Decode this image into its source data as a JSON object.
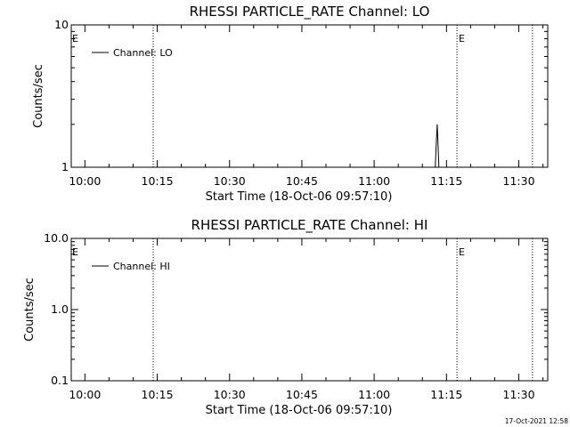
{
  "footer": {
    "timestamp": "17-Oct-2021 12:58"
  },
  "chart_data": [
    {
      "type": "line",
      "title": "RHESSI PARTICLE_RATE Channel: LO",
      "xlabel": "Start Time (18-Oct-06 09:57:10)",
      "ylabel": "Counts/sec",
      "yscale": "log",
      "xlim": [
        "09:57:10",
        "11:36:00"
      ],
      "ylim": [
        1,
        10
      ],
      "x_ticks": [
        "10:00",
        "10:15",
        "10:30",
        "10:45",
        "11:00",
        "11:15",
        "11:30"
      ],
      "y_ticks": [
        {
          "value": 1,
          "label": "1"
        },
        {
          "value": 10,
          "label": "10"
        }
      ],
      "series": [
        {
          "name": "Channel: LO",
          "x": [
            "11:12:40",
            "11:12:55",
            "11:13:05",
            "11:13:15",
            "11:13:25"
          ],
          "y": [
            1,
            1.55,
            2.0,
            1.4,
            1
          ]
        }
      ],
      "legend": "top-left",
      "markers": [
        {
          "x": "10:14:10",
          "label": ""
        },
        {
          "x": "11:17:10",
          "label": "E"
        },
        {
          "x": "11:32:50",
          "label": ""
        }
      ],
      "flag_left": "E",
      "grid": false
    },
    {
      "type": "line",
      "title": "RHESSI PARTICLE_RATE Channel: HI",
      "xlabel": "Start Time (18-Oct-06 09:57:10)",
      "ylabel": "Counts/sec",
      "yscale": "log",
      "xlim": [
        "09:57:10",
        "11:36:00"
      ],
      "ylim": [
        0.1,
        10
      ],
      "x_ticks": [
        "10:00",
        "10:15",
        "10:30",
        "10:45",
        "11:00",
        "11:15",
        "11:30"
      ],
      "y_ticks": [
        {
          "value": 0.1,
          "label": "0.1"
        },
        {
          "value": 1,
          "label": "1.0"
        },
        {
          "value": 10,
          "label": "10.0"
        }
      ],
      "series": [
        {
          "name": "Channel: HI",
          "x": [],
          "y": []
        }
      ],
      "legend": "top-left",
      "markers": [
        {
          "x": "10:14:10",
          "label": ""
        },
        {
          "x": "11:17:10",
          "label": "E"
        },
        {
          "x": "11:32:50",
          "label": ""
        }
      ],
      "flag_left": "E",
      "grid": false
    }
  ]
}
